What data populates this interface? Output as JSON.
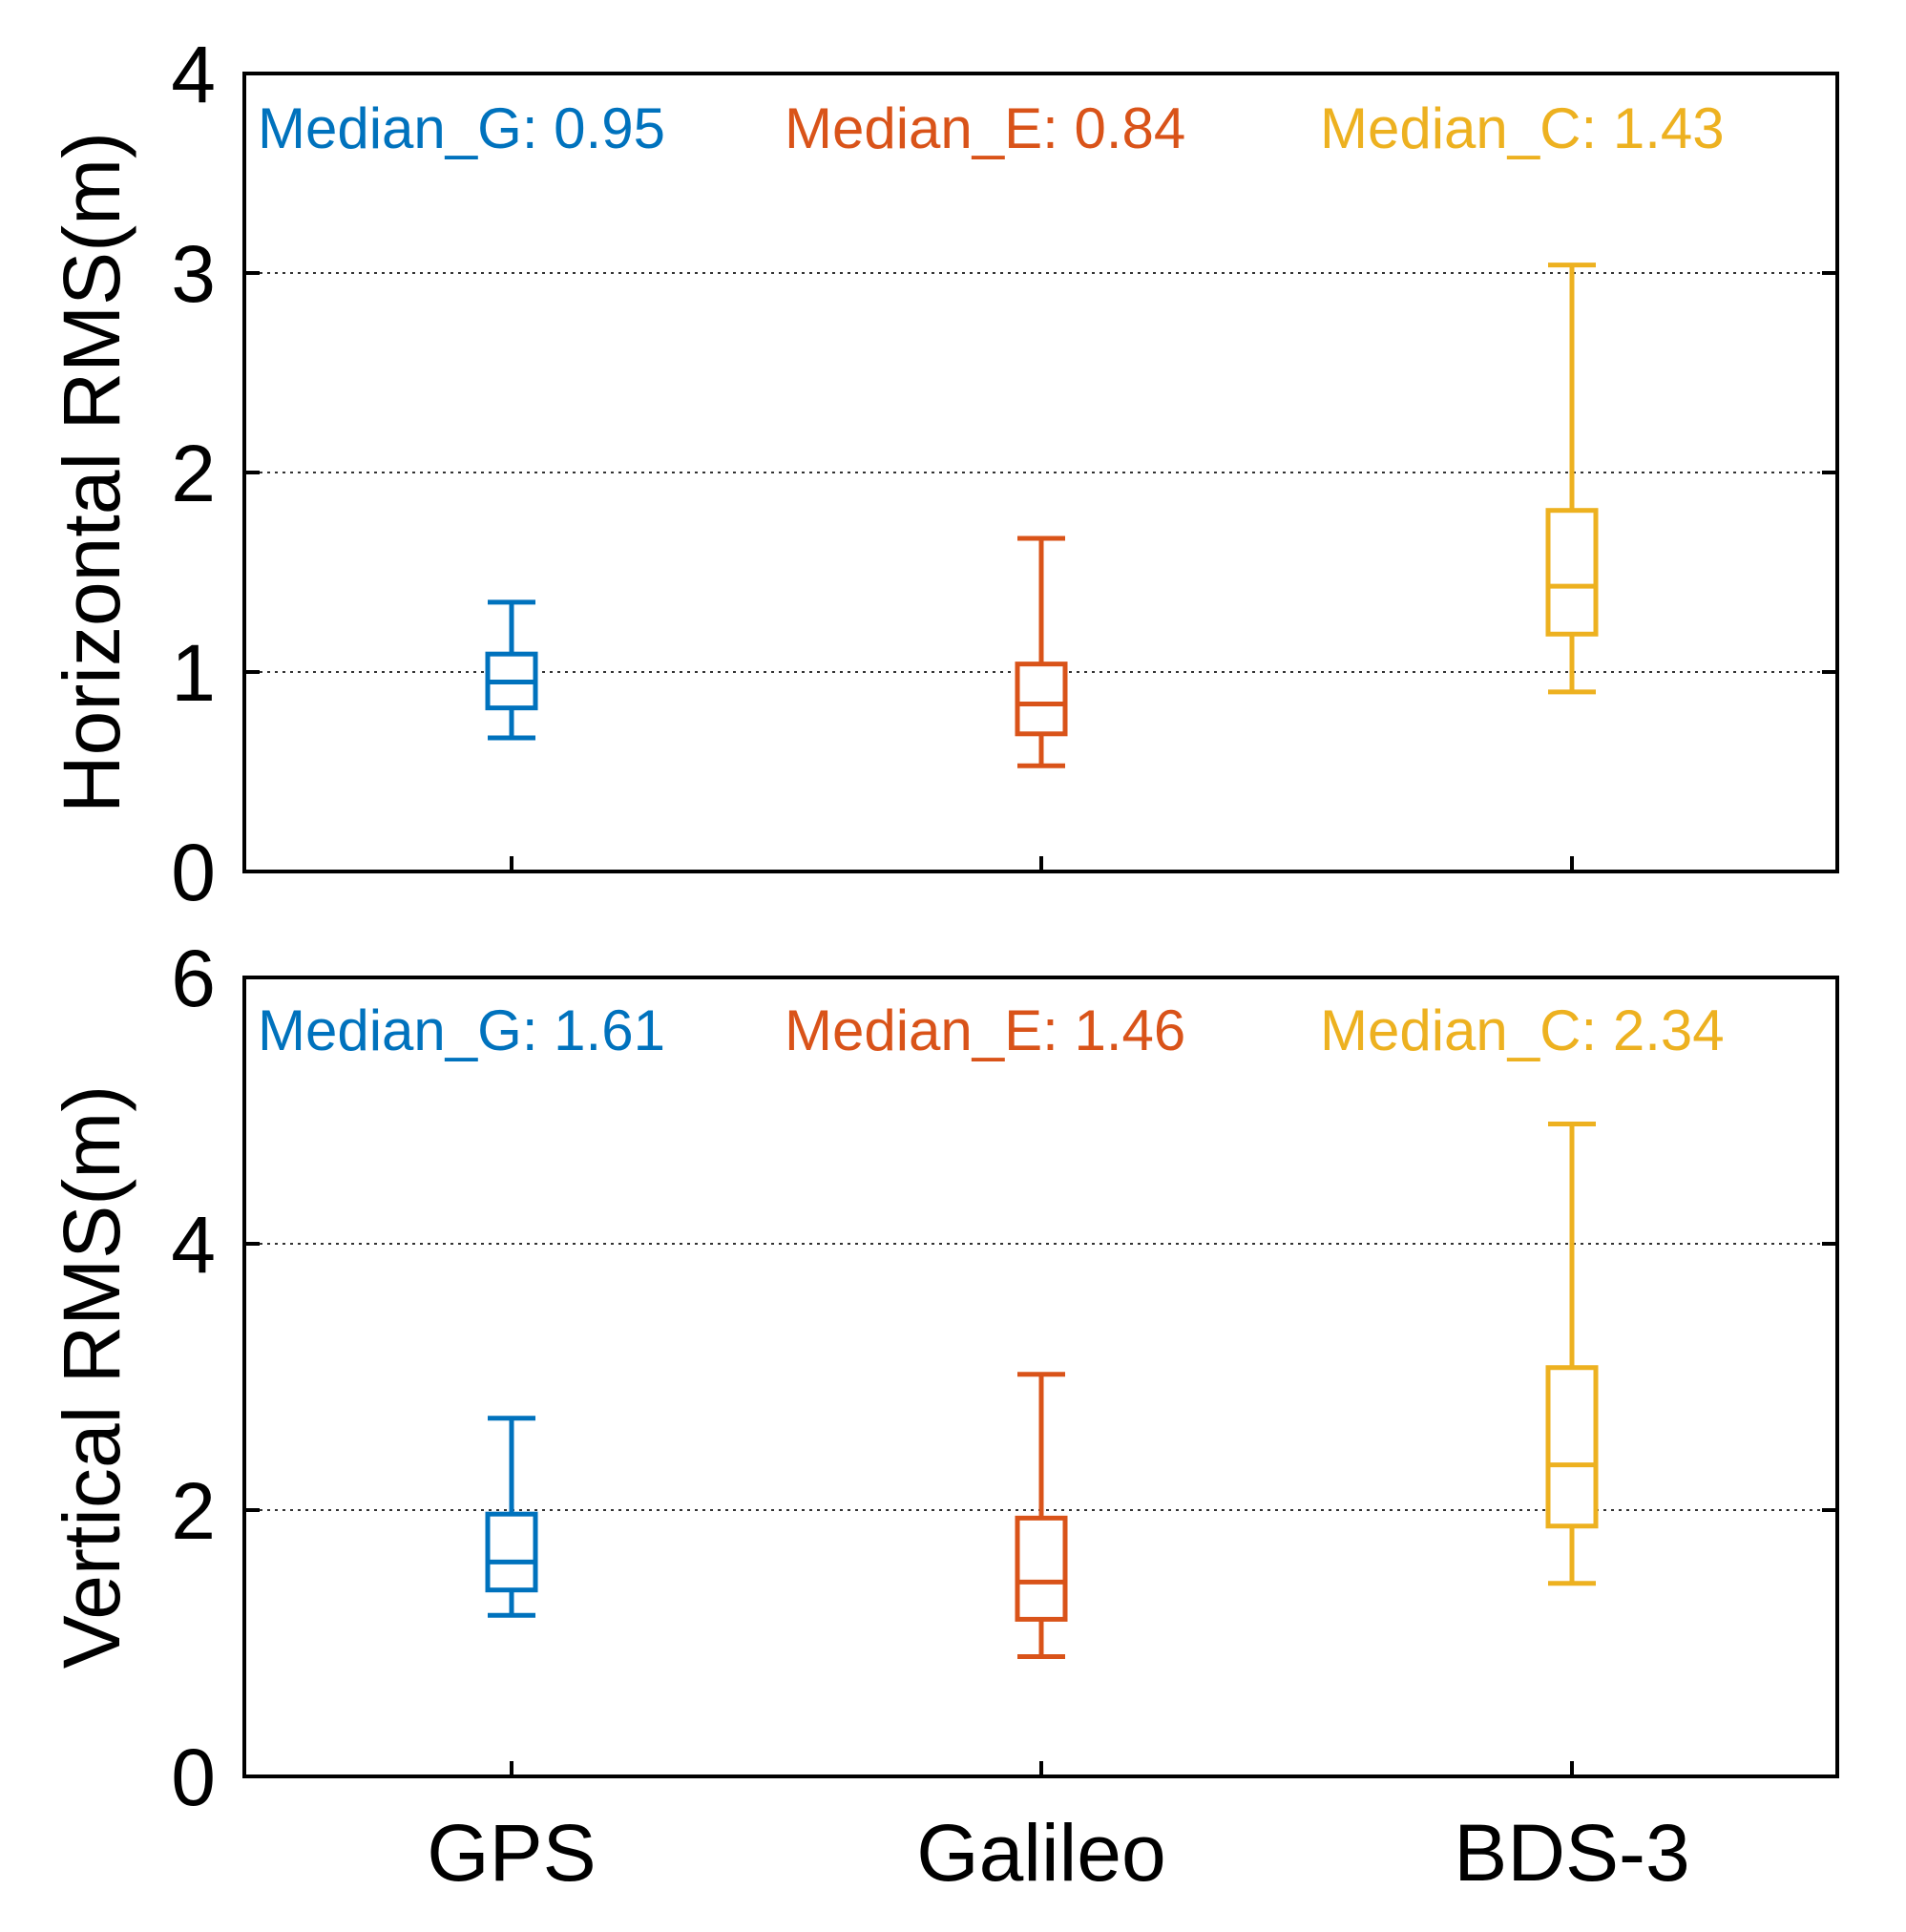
{
  "chart_data": [
    {
      "type": "box",
      "panel": "top",
      "ylabel": "Horizontal RMS(m)",
      "ylim": [
        0,
        4
      ],
      "yticks": [
        0,
        1,
        2,
        3,
        4
      ],
      "grid": "horizontal dotted",
      "categories": [
        "GPS",
        "Galileo",
        "BDS-3"
      ],
      "show_category_labels": false,
      "series": [
        {
          "name": "GPS",
          "color": "#0072BD",
          "whisker_low": 0.67,
          "q1": 0.82,
          "median": 0.95,
          "q3": 1.09,
          "whisker_high": 1.35
        },
        {
          "name": "Galileo",
          "color": "#D95319",
          "whisker_low": 0.53,
          "q1": 0.69,
          "median": 0.84,
          "q3": 1.04,
          "whisker_high": 1.67
        },
        {
          "name": "BDS-3",
          "color": "#EDB120",
          "whisker_low": 0.9,
          "q1": 1.19,
          "median": 1.43,
          "q3": 1.81,
          "whisker_high": 3.04
        }
      ],
      "annotations": [
        {
          "text": "Median_G: 0.95",
          "color": "#0072BD"
        },
        {
          "text": "Median_E: 0.84",
          "color": "#D95319"
        },
        {
          "text": "Median_C: 1.43",
          "color": "#EDB120"
        }
      ]
    },
    {
      "type": "box",
      "panel": "bottom",
      "ylabel": "Vertical RMS(m)",
      "ylim": [
        0,
        6
      ],
      "yticks": [
        0,
        2,
        4,
        6
      ],
      "grid": "horizontal dotted",
      "categories": [
        "GPS",
        "Galileo",
        "BDS-3"
      ],
      "show_category_labels": true,
      "series": [
        {
          "name": "GPS",
          "color": "#0072BD",
          "whisker_low": 1.21,
          "q1": 1.4,
          "median": 1.61,
          "q3": 1.97,
          "whisker_high": 2.69
        },
        {
          "name": "Galileo",
          "color": "#D95319",
          "whisker_low": 0.9,
          "q1": 1.18,
          "median": 1.46,
          "q3": 1.94,
          "whisker_high": 3.02
        },
        {
          "name": "BDS-3",
          "color": "#EDB120",
          "whisker_low": 1.45,
          "q1": 1.88,
          "median": 2.34,
          "q3": 3.07,
          "whisker_high": 4.9
        }
      ],
      "annotations": [
        {
          "text": "Median_G: 1.61",
          "color": "#0072BD"
        },
        {
          "text": "Median_E: 1.46",
          "color": "#D95319"
        },
        {
          "text": "Median_C: 2.34",
          "color": "#EDB120"
        }
      ]
    }
  ]
}
